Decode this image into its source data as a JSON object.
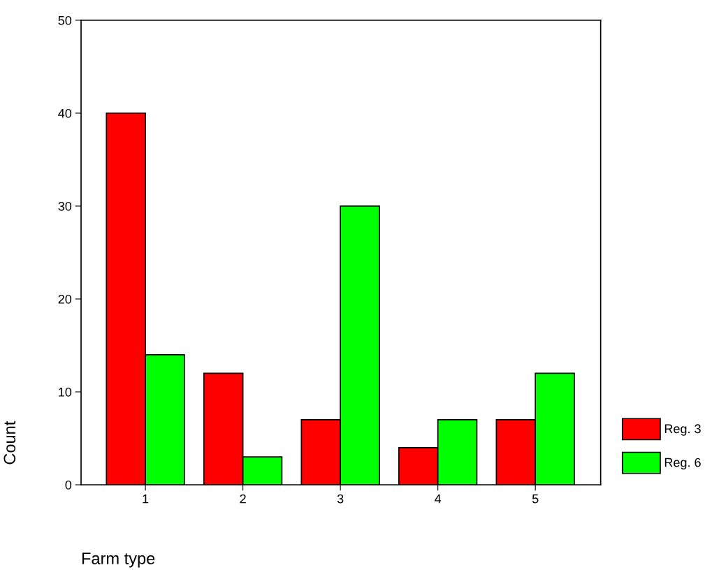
{
  "chart_data": {
    "type": "bar",
    "xlabel": "Farm type",
    "ylabel": "Count",
    "categories": [
      "1",
      "2",
      "3",
      "4",
      "5"
    ],
    "series": [
      {
        "name": "Reg. 3",
        "color": "#ff0000",
        "values": [
          40,
          12,
          7,
          4,
          7
        ]
      },
      {
        "name": "Reg. 6",
        "color": "#00ff00",
        "values": [
          14,
          3,
          30,
          7,
          12
        ]
      }
    ],
    "ylim": [
      0,
      50
    ],
    "yticks": [
      0,
      10,
      20,
      30,
      40,
      50
    ],
    "grid": false,
    "legend": "bottom right"
  }
}
